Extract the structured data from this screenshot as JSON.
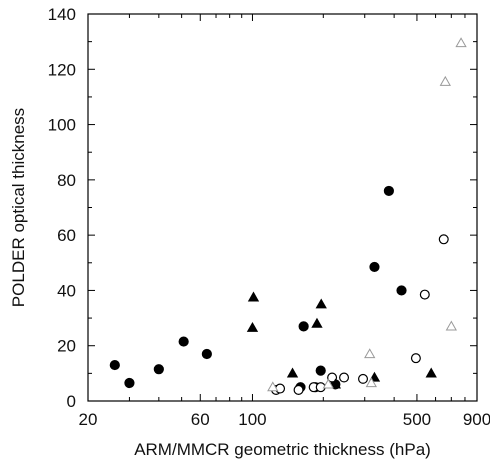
{
  "chart_data": {
    "type": "scatter",
    "title": "",
    "xlabel": "ARM/MMCR geometric thickness (hPa)",
    "ylabel": "POLDER optical thickness",
    "x_scale": "log",
    "xlim": [
      20,
      900
    ],
    "ylim": [
      0,
      140
    ],
    "grid": false,
    "x_tick_labels": [
      "20",
      "60",
      "100",
      "500",
      "900"
    ],
    "x_major_ticks": [
      20,
      60,
      100,
      500,
      900
    ],
    "x_minor_ticks": [
      30,
      40,
      50,
      70,
      80,
      90,
      200,
      300,
      400,
      600,
      700,
      800
    ],
    "y_ticks": [
      0,
      20,
      40,
      60,
      80,
      100,
      120,
      140
    ],
    "y_tick_labels": [
      "0",
      "20",
      "40",
      "60",
      "80",
      "100",
      "120",
      "140"
    ],
    "series": [
      {
        "marker": "filled-circle",
        "color": "#000000",
        "points": [
          [
            26,
            13
          ],
          [
            30,
            6.5
          ],
          [
            40,
            11.5
          ],
          [
            51,
            21.5
          ],
          [
            64,
            17
          ],
          [
            160,
            5
          ],
          [
            165,
            27
          ],
          [
            185,
            5
          ],
          [
            195,
            11
          ],
          [
            225,
            6
          ],
          [
            330,
            48.5
          ],
          [
            380,
            76
          ],
          [
            430,
            40
          ]
        ]
      },
      {
        "marker": "open-circle",
        "color": "#000000",
        "points": [
          [
            126,
            4
          ],
          [
            131,
            4.5
          ],
          [
            157,
            4
          ],
          [
            182,
            5
          ],
          [
            195,
            5
          ],
          [
            218,
            8.5
          ],
          [
            245,
            8.5
          ],
          [
            295,
            8
          ],
          [
            495,
            15.5
          ],
          [
            540,
            38.5
          ],
          [
            650,
            58.5
          ]
        ]
      },
      {
        "marker": "filled-triangle",
        "color": "#000000",
        "points": [
          [
            100,
            26.5
          ],
          [
            101,
            37.5
          ],
          [
            148,
            10
          ],
          [
            188,
            28
          ],
          [
            196,
            35
          ],
          [
            225,
            6
          ],
          [
            330,
            8.5
          ],
          [
            575,
            10
          ]
        ]
      },
      {
        "marker": "open-triangle",
        "color": "#999999",
        "points": [
          [
            122,
            5
          ],
          [
            210,
            6
          ],
          [
            315,
            17
          ],
          [
            320,
            6.5
          ],
          [
            660,
            115.5
          ],
          [
            700,
            27
          ],
          [
            770,
            129.5
          ]
        ]
      }
    ]
  }
}
